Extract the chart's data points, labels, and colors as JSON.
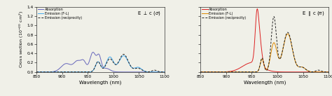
{
  "xlim": [
    850,
    1100
  ],
  "ylim": [
    0,
    1.4
  ],
  "yticks": [
    0.0,
    0.2,
    0.4,
    0.6,
    0.8,
    1.0,
    1.2,
    1.4
  ],
  "xticks": [
    850,
    900,
    950,
    1000,
    1050,
    1100
  ],
  "xlabel": "Wavelength (nm)",
  "ylabel": "Cross section (10$^{-20}$ cm$^2$)",
  "left_label": "E $\\perp$ c ($\\sigma$)",
  "right_label": "E $\\parallel$ c ($\\pi$)",
  "legend_absorption": "Absorption",
  "legend_emission_fl": "Emission (F-L)",
  "legend_emission_rec": "Emission (reciprocity)",
  "left_absorption_color": "#6666bb",
  "left_emission_fl_color": "#44aaee",
  "right_absorption_color": "#dd2222",
  "right_emission_fl_color": "#dd8800",
  "emission_rec_color": "#222222",
  "background_color": "#f0f0e8",
  "figsize": [
    4.74,
    1.37
  ],
  "dpi": 100
}
